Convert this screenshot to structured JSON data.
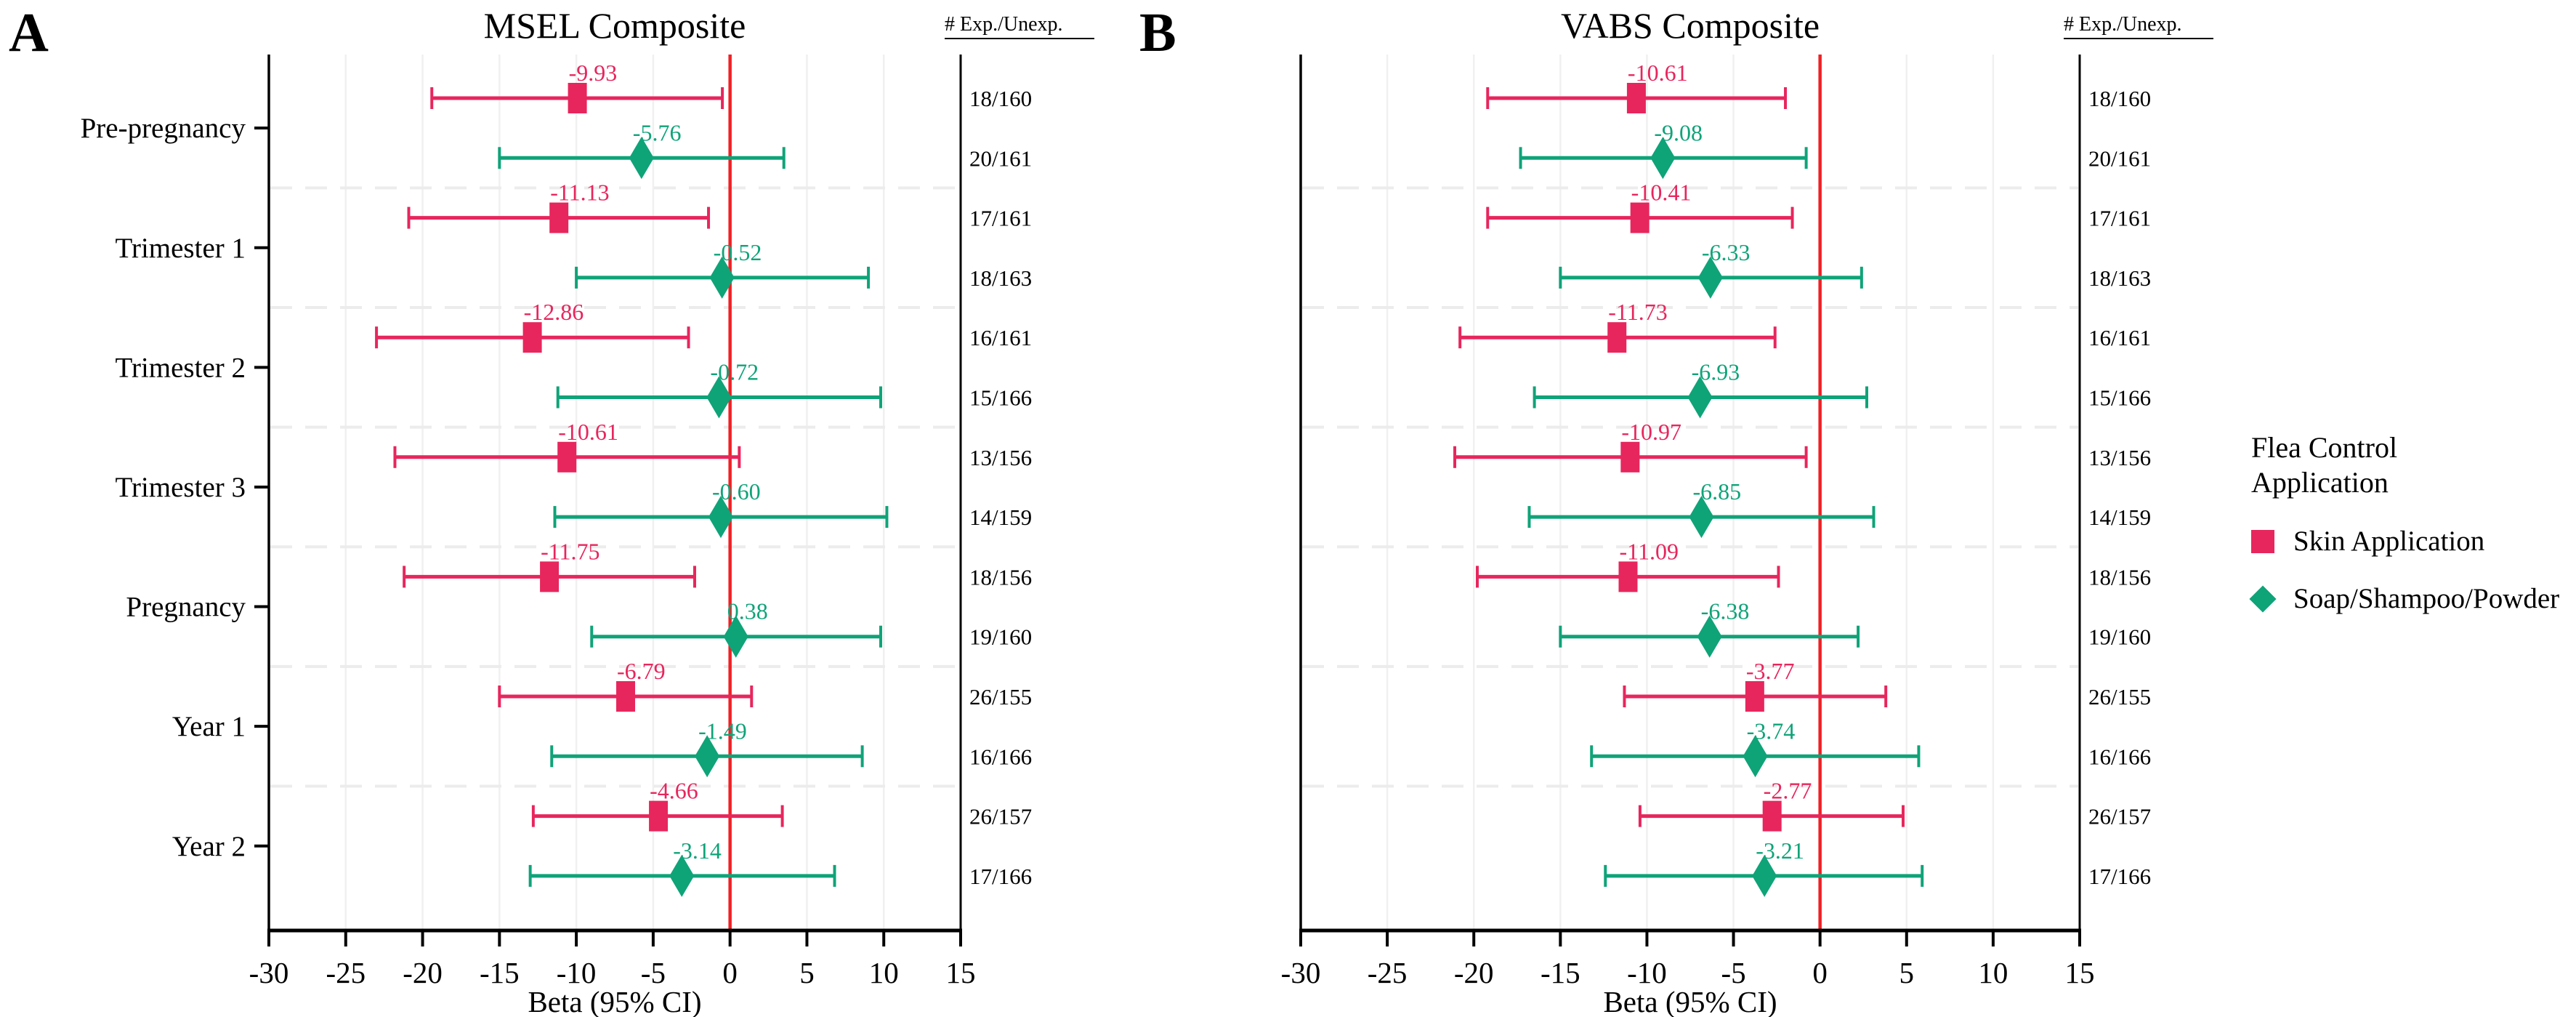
{
  "figure": {
    "panels": [
      {
        "letter": "A"
      },
      {
        "letter": "B"
      }
    ],
    "legend": {
      "title_lines": [
        "Flea Control",
        "Application"
      ],
      "items": [
        {
          "label": "Skin Application",
          "marker": "square",
          "color": "#E7265D"
        },
        {
          "label": "Soap/Shampoo/Powder",
          "marker": "diamond",
          "color": "#0FA378"
        }
      ]
    },
    "colors": {
      "skin": "#E7265D",
      "soap": "#0FA378",
      "zero_line": "#EF2125",
      "gridline": "#F0F0F0",
      "separator": "#ECECEC",
      "axis": "#000000"
    }
  },
  "chart_data": [
    {
      "type": "forest",
      "title": "MSEL Composite",
      "xlabel": "Beta (95% CI)",
      "xlim": [
        -30,
        15
      ],
      "xticks": [
        -30,
        -25,
        -20,
        -15,
        -10,
        -5,
        0,
        5,
        10,
        15
      ],
      "zero_line": 0,
      "col_header": "# Exp./Unexp.",
      "legend_position": "none",
      "grid": "light",
      "categories": [
        "Pre-pregnancy",
        "Trimester 1",
        "Trimester 2",
        "Trimester 3",
        "Pregnancy",
        "Year 1",
        "Year 2"
      ],
      "rows": [
        {
          "category": "Pre-pregnancy",
          "series": "Skin Application",
          "beta": -9.93,
          "ci": [
            -19.4,
            -0.5
          ],
          "n": "18/160"
        },
        {
          "category": "Pre-pregnancy",
          "series": "Soap/Shampoo/Powder",
          "beta": -5.76,
          "ci": [
            -15.0,
            3.5
          ],
          "n": "20/161"
        },
        {
          "category": "Trimester 1",
          "series": "Skin Application",
          "beta": -11.13,
          "ci": [
            -20.9,
            -1.4
          ],
          "n": "17/161"
        },
        {
          "category": "Trimester 1",
          "series": "Soap/Shampoo/Powder",
          "beta": -0.52,
          "ci": [
            -10.0,
            9.0
          ],
          "n": "18/163"
        },
        {
          "category": "Trimester 2",
          "series": "Skin Application",
          "beta": -12.86,
          "ci": [
            -23.0,
            -2.7
          ],
          "n": "16/161"
        },
        {
          "category": "Trimester 2",
          "series": "Soap/Shampoo/Powder",
          "beta": -0.72,
          "ci": [
            -11.2,
            9.8
          ],
          "n": "15/166"
        },
        {
          "category": "Trimester 3",
          "series": "Skin Application",
          "beta": -10.61,
          "ci": [
            -21.8,
            0.6
          ],
          "n": "13/156"
        },
        {
          "category": "Trimester 3",
          "series": "Soap/Shampoo/Powder",
          "beta": -0.6,
          "ci": [
            -11.4,
            10.2
          ],
          "n": "14/159"
        },
        {
          "category": "Pregnancy",
          "series": "Skin Application",
          "beta": -11.75,
          "ci": [
            -21.2,
            -2.3
          ],
          "n": "18/156"
        },
        {
          "category": "Pregnancy",
          "series": "Soap/Shampoo/Powder",
          "beta": 0.38,
          "ci": [
            -9.0,
            9.8
          ],
          "n": "19/160"
        },
        {
          "category": "Year 1",
          "series": "Skin Application",
          "beta": -6.79,
          "ci": [
            -15.0,
            1.4
          ],
          "n": "26/155"
        },
        {
          "category": "Year 1",
          "series": "Soap/Shampoo/Powder",
          "beta": -1.49,
          "ci": [
            -11.6,
            8.6
          ],
          "n": "16/166"
        },
        {
          "category": "Year 2",
          "series": "Skin Application",
          "beta": -4.66,
          "ci": [
            -12.8,
            3.4
          ],
          "n": "26/157"
        },
        {
          "category": "Year 2",
          "series": "Soap/Shampoo/Powder",
          "beta": -3.14,
          "ci": [
            -13.0,
            6.8
          ],
          "n": "17/166"
        }
      ]
    },
    {
      "type": "forest",
      "title": "VABS Composite",
      "xlabel": "Beta (95% CI)",
      "xlim": [
        -30,
        15
      ],
      "xticks": [
        -30,
        -25,
        -20,
        -15,
        -10,
        -5,
        0,
        5,
        10,
        15
      ],
      "zero_line": 0,
      "col_header": "# Exp./Unexp.",
      "legend_position": "right",
      "grid": "light",
      "categories": [
        "Pre-pregnancy",
        "Trimester 1",
        "Trimester 2",
        "Trimester 3",
        "Pregnancy",
        "Year 1",
        "Year 2"
      ],
      "rows": [
        {
          "category": "Pre-pregnancy",
          "series": "Skin Application",
          "beta": -10.61,
          "ci": [
            -19.2,
            -2.0
          ],
          "n": "18/160"
        },
        {
          "category": "Pre-pregnancy",
          "series": "Soap/Shampoo/Powder",
          "beta": -9.08,
          "ci": [
            -17.3,
            -0.8
          ],
          "n": "20/161"
        },
        {
          "category": "Trimester 1",
          "series": "Skin Application",
          "beta": -10.41,
          "ci": [
            -19.2,
            -1.6
          ],
          "n": "17/161"
        },
        {
          "category": "Trimester 1",
          "series": "Soap/Shampoo/Powder",
          "beta": -6.33,
          "ci": [
            -15.0,
            2.4
          ],
          "n": "18/163"
        },
        {
          "category": "Trimester 2",
          "series": "Skin Application",
          "beta": -11.73,
          "ci": [
            -20.8,
            -2.6
          ],
          "n": "16/161"
        },
        {
          "category": "Trimester 2",
          "series": "Soap/Shampoo/Powder",
          "beta": -6.93,
          "ci": [
            -16.5,
            2.7
          ],
          "n": "15/166"
        },
        {
          "category": "Trimester 3",
          "series": "Skin Application",
          "beta": -10.97,
          "ci": [
            -21.1,
            -0.8
          ],
          "n": "13/156"
        },
        {
          "category": "Trimester 3",
          "series": "Soap/Shampoo/Powder",
          "beta": -6.85,
          "ci": [
            -16.8,
            3.1
          ],
          "n": "14/159"
        },
        {
          "category": "Pregnancy",
          "series": "Skin Application",
          "beta": -11.09,
          "ci": [
            -19.8,
            -2.4
          ],
          "n": "18/156"
        },
        {
          "category": "Pregnancy",
          "series": "Soap/Shampoo/Powder",
          "beta": -6.38,
          "ci": [
            -15.0,
            2.2
          ],
          "n": "19/160"
        },
        {
          "category": "Year 1",
          "series": "Skin Application",
          "beta": -3.77,
          "ci": [
            -11.3,
            3.8
          ],
          "n": "26/155"
        },
        {
          "category": "Year 1",
          "series": "Soap/Shampoo/Powder",
          "beta": -3.74,
          "ci": [
            -13.2,
            5.7
          ],
          "n": "16/166"
        },
        {
          "category": "Year 2",
          "series": "Skin Application",
          "beta": -2.77,
          "ci": [
            -10.4,
            4.8
          ],
          "n": "26/157"
        },
        {
          "category": "Year 2",
          "series": "Soap/Shampoo/Powder",
          "beta": -3.21,
          "ci": [
            -12.4,
            5.9
          ],
          "n": "17/166"
        }
      ]
    }
  ]
}
